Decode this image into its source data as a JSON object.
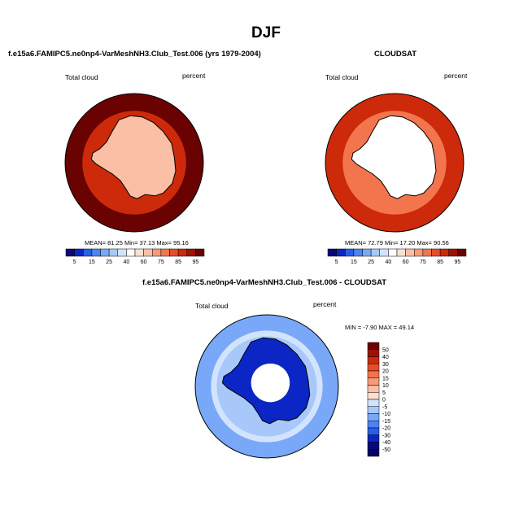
{
  "figure": {
    "title": "DJF"
  },
  "chart_data": [
    {
      "type": "heatmap",
      "projection": "south-polar-stereographic",
      "title": "f.e15a6.FAMIPC5.ne0np4-VarMeshNH3.Club_Test.006 (yrs 1979-2004)",
      "left_label": "Total cloud",
      "right_label": "percent",
      "stats_text": "MEAN= 81.25  Min= 37.13  Max= 95.16",
      "mean": 81.25,
      "min": 37.13,
      "max": 95.16,
      "colorbar": {
        "orientation": "horizontal",
        "levels": [
          5,
          10,
          15,
          20,
          25,
          30,
          40,
          50,
          60,
          70,
          75,
          80,
          85,
          90,
          95
        ],
        "tick_labels": [
          "5",
          "15",
          "25",
          "40",
          "60",
          "75",
          "85",
          "95"
        ],
        "colors": [
          "#08087a",
          "#0b26c4",
          "#2a5ee6",
          "#4d84f2",
          "#7aa8f8",
          "#a8c8fb",
          "#d2e4fd",
          "#ffffff",
          "#fde0d2",
          "#fbbfa5",
          "#f79a78",
          "#f2754d",
          "#e84d26",
          "#cc2a0a",
          "#9e1204",
          "#6b0202"
        ]
      },
      "ocean_value": 95,
      "continent_value": 60
    },
    {
      "type": "heatmap",
      "projection": "south-polar-stereographic",
      "title": "CLOUDSAT",
      "left_label": "Total cloud",
      "right_label": "percent",
      "stats_text": "MEAN= 72.79  Min= 17.20  Max= 90.56",
      "mean": 72.79,
      "min": 17.2,
      "max": 90.56,
      "colorbar": {
        "orientation": "horizontal",
        "levels": [
          5,
          10,
          15,
          20,
          25,
          30,
          40,
          50,
          60,
          70,
          75,
          80,
          85,
          90,
          95
        ],
        "tick_labels": [
          "5",
          "15",
          "25",
          "40",
          "60",
          "75",
          "85",
          "95"
        ],
        "colors": [
          "#08087a",
          "#0b26c4",
          "#2a5ee6",
          "#4d84f2",
          "#7aa8f8",
          "#a8c8fb",
          "#d2e4fd",
          "#ffffff",
          "#fde0d2",
          "#fbbfa5",
          "#f79a78",
          "#f2754d",
          "#e84d26",
          "#cc2a0a",
          "#9e1204",
          "#6b0202"
        ]
      },
      "ocean_value": 85,
      "continent_value": 40,
      "missing_pole": true
    },
    {
      "type": "heatmap",
      "projection": "south-polar-stereographic",
      "title": "f.e15a6.FAMIPC5.ne0np4-VarMeshNH3.Club_Test.006 - CLOUDSAT",
      "left_label": "Total cloud",
      "right_label": "percent",
      "stats_text": "MIN = -7.90 MAX = 49.14",
      "min": -7.9,
      "max": 49.14,
      "colorbar": {
        "orientation": "vertical",
        "levels": [
          -50,
          -40,
          -30,
          -20,
          -15,
          -10,
          -5,
          0,
          5,
          10,
          15,
          20,
          30,
          40,
          50
        ],
        "tick_labels": [
          "50",
          "40",
          "30",
          "20",
          "15",
          "10",
          "5",
          "0",
          "-5",
          "-10",
          "-15",
          "-20",
          "-30",
          "-40",
          "-50"
        ],
        "colors": [
          "#6b0202",
          "#9e1204",
          "#cc2a0a",
          "#e84d26",
          "#f2754d",
          "#f79a78",
          "#fbbfa5",
          "#fde0d2",
          "#d2e4fd",
          "#a8c8fb",
          "#7aa8f8",
          "#4d84f2",
          "#2a5ee6",
          "#0b26c4",
          "#08087a",
          "#050560"
        ]
      },
      "ocean_value": 10,
      "continent_value": 30,
      "missing_pole": true
    }
  ]
}
